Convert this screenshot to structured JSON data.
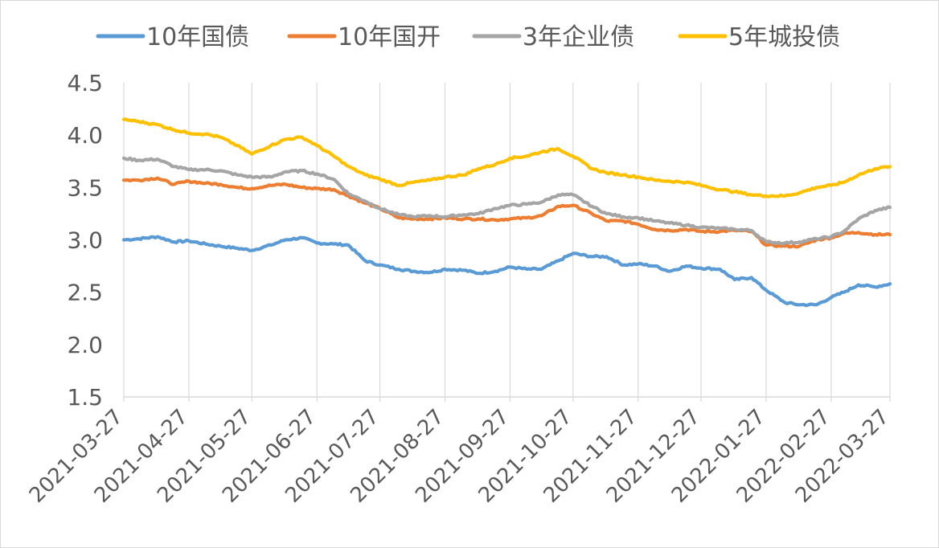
{
  "chart_data": {
    "type": "line",
    "title": "",
    "xlabel": "",
    "ylabel": "",
    "ylim": [
      1.5,
      4.5
    ],
    "yticks": [
      "4.5",
      "4.0",
      "3.5",
      "3.0",
      "2.5",
      "2.0",
      "1.5"
    ],
    "xlim": [
      "2021-03-27",
      "2022-03-27"
    ],
    "categories": [
      "2021-03-27",
      "2021-04-27",
      "2021-05-27",
      "2021-06-27",
      "2021-07-27",
      "2021-08-27",
      "2021-09-27",
      "2021-10-27",
      "2021-11-27",
      "2021-12-27",
      "2022-01-27",
      "2022-02-27",
      "2022-03-27"
    ],
    "grid": "vertical",
    "legend_position": "top",
    "series": [
      {
        "name": "10年国债",
        "color": "#5B9BD5",
        "x": [
          "2021-03-27",
          "2021-04-03",
          "2021-04-12",
          "2021-04-20",
          "2021-04-27",
          "2021-05-05",
          "2021-05-12",
          "2021-05-20",
          "2021-05-27",
          "2021-06-05",
          "2021-06-12",
          "2021-06-20",
          "2021-06-27",
          "2021-07-05",
          "2021-07-12",
          "2021-07-20",
          "2021-07-27",
          "2021-08-05",
          "2021-08-12",
          "2021-08-20",
          "2021-08-27",
          "2021-09-05",
          "2021-09-12",
          "2021-09-20",
          "2021-09-27",
          "2021-10-05",
          "2021-10-12",
          "2021-10-20",
          "2021-10-27",
          "2021-11-05",
          "2021-11-12",
          "2021-11-20",
          "2021-11-27",
          "2021-12-05",
          "2021-12-12",
          "2021-12-20",
          "2021-12-27",
          "2022-01-05",
          "2022-01-12",
          "2022-01-20",
          "2022-01-27",
          "2022-02-05",
          "2022-02-12",
          "2022-02-20",
          "2022-02-27",
          "2022-03-05",
          "2022-03-12",
          "2022-03-20",
          "2022-03-27"
        ],
        "values": [
          3.0,
          3.01,
          3.03,
          2.98,
          2.99,
          2.96,
          2.94,
          2.92,
          2.9,
          2.95,
          3.0,
          3.02,
          2.97,
          2.96,
          2.95,
          2.8,
          2.76,
          2.72,
          2.7,
          2.69,
          2.72,
          2.71,
          2.68,
          2.7,
          2.74,
          2.72,
          2.72,
          2.8,
          2.87,
          2.84,
          2.84,
          2.76,
          2.77,
          2.75,
          2.7,
          2.75,
          2.73,
          2.72,
          2.62,
          2.64,
          2.52,
          2.4,
          2.38,
          2.38,
          2.45,
          2.5,
          2.57,
          2.55,
          2.58
        ]
      },
      {
        "name": "10年国开",
        "color": "#ED7D31",
        "x": [
          "2021-03-27",
          "2021-04-03",
          "2021-04-12",
          "2021-04-20",
          "2021-04-27",
          "2021-05-05",
          "2021-05-12",
          "2021-05-20",
          "2021-05-27",
          "2021-06-05",
          "2021-06-12",
          "2021-06-20",
          "2021-06-27",
          "2021-07-05",
          "2021-07-12",
          "2021-07-20",
          "2021-07-27",
          "2021-08-05",
          "2021-08-12",
          "2021-08-20",
          "2021-08-27",
          "2021-09-05",
          "2021-09-12",
          "2021-09-20",
          "2021-09-27",
          "2021-10-05",
          "2021-10-12",
          "2021-10-20",
          "2021-10-27",
          "2021-11-05",
          "2021-11-12",
          "2021-11-20",
          "2021-11-27",
          "2021-12-05",
          "2021-12-12",
          "2021-12-20",
          "2021-12-27",
          "2022-01-05",
          "2022-01-12",
          "2022-01-20",
          "2022-01-27",
          "2022-02-05",
          "2022-02-12",
          "2022-02-20",
          "2022-02-27",
          "2022-03-05",
          "2022-03-12",
          "2022-03-20",
          "2022-03-27"
        ],
        "values": [
          3.57,
          3.57,
          3.59,
          3.53,
          3.56,
          3.54,
          3.53,
          3.5,
          3.49,
          3.52,
          3.53,
          3.5,
          3.49,
          3.48,
          3.42,
          3.35,
          3.3,
          3.21,
          3.2,
          3.2,
          3.21,
          3.2,
          3.2,
          3.19,
          3.2,
          3.21,
          3.23,
          3.32,
          3.33,
          3.25,
          3.18,
          3.18,
          3.15,
          3.1,
          3.09,
          3.1,
          3.08,
          3.08,
          3.09,
          3.08,
          2.95,
          2.94,
          2.94,
          3.0,
          3.02,
          3.06,
          3.07,
          3.05,
          3.05
        ]
      },
      {
        "name": "3年企业债",
        "color": "#A5A5A5",
        "x": [
          "2021-03-27",
          "2021-04-03",
          "2021-04-12",
          "2021-04-20",
          "2021-04-27",
          "2021-05-05",
          "2021-05-12",
          "2021-05-20",
          "2021-05-27",
          "2021-06-05",
          "2021-06-12",
          "2021-06-20",
          "2021-06-27",
          "2021-07-05",
          "2021-07-12",
          "2021-07-20",
          "2021-07-27",
          "2021-08-05",
          "2021-08-12",
          "2021-08-20",
          "2021-08-27",
          "2021-09-05",
          "2021-09-12",
          "2021-09-20",
          "2021-09-27",
          "2021-10-05",
          "2021-10-12",
          "2021-10-20",
          "2021-10-27",
          "2021-11-05",
          "2021-11-12",
          "2021-11-20",
          "2021-11-27",
          "2021-12-05",
          "2021-12-12",
          "2021-12-20",
          "2021-12-27",
          "2022-01-05",
          "2022-01-12",
          "2022-01-20",
          "2022-01-27",
          "2022-02-05",
          "2022-02-12",
          "2022-02-20",
          "2022-02-27",
          "2022-03-05",
          "2022-03-12",
          "2022-03-20",
          "2022-03-27"
        ],
        "values": [
          3.78,
          3.76,
          3.77,
          3.7,
          3.67,
          3.67,
          3.66,
          3.62,
          3.6,
          3.6,
          3.65,
          3.66,
          3.63,
          3.58,
          3.44,
          3.37,
          3.3,
          3.24,
          3.22,
          3.23,
          3.22,
          3.24,
          3.25,
          3.3,
          3.33,
          3.34,
          3.36,
          3.43,
          3.43,
          3.32,
          3.25,
          3.22,
          3.21,
          3.18,
          3.16,
          3.14,
          3.12,
          3.11,
          3.1,
          3.09,
          2.98,
          2.97,
          2.98,
          3.01,
          3.03,
          3.08,
          3.2,
          3.28,
          3.31
        ]
      },
      {
        "name": "5年城投债",
        "color": "#FFC000",
        "x": [
          "2021-03-27",
          "2021-04-03",
          "2021-04-12",
          "2021-04-20",
          "2021-04-27",
          "2021-05-05",
          "2021-05-12",
          "2021-05-20",
          "2021-05-27",
          "2021-06-05",
          "2021-06-12",
          "2021-06-20",
          "2021-06-27",
          "2021-07-05",
          "2021-07-12",
          "2021-07-20",
          "2021-07-27",
          "2021-08-05",
          "2021-08-12",
          "2021-08-20",
          "2021-08-27",
          "2021-09-05",
          "2021-09-12",
          "2021-09-20",
          "2021-09-27",
          "2021-10-05",
          "2021-10-12",
          "2021-10-20",
          "2021-10-27",
          "2021-11-05",
          "2021-11-12",
          "2021-11-20",
          "2021-11-27",
          "2021-12-05",
          "2021-12-12",
          "2021-12-20",
          "2021-12-27",
          "2022-01-05",
          "2022-01-12",
          "2022-01-20",
          "2022-01-27",
          "2022-02-05",
          "2022-02-12",
          "2022-02-20",
          "2022-02-27",
          "2022-03-05",
          "2022-03-12",
          "2022-03-20",
          "2022-03-27"
        ],
        "values": [
          4.15,
          4.13,
          4.1,
          4.05,
          4.02,
          4.01,
          3.98,
          3.9,
          3.82,
          3.9,
          3.96,
          3.98,
          3.9,
          3.8,
          3.7,
          3.62,
          3.58,
          3.52,
          3.55,
          3.57,
          3.6,
          3.62,
          3.68,
          3.72,
          3.78,
          3.8,
          3.84,
          3.87,
          3.8,
          3.68,
          3.64,
          3.62,
          3.6,
          3.57,
          3.56,
          3.55,
          3.52,
          3.48,
          3.46,
          3.43,
          3.42,
          3.42,
          3.45,
          3.5,
          3.52,
          3.55,
          3.62,
          3.68,
          3.7
        ]
      }
    ]
  }
}
